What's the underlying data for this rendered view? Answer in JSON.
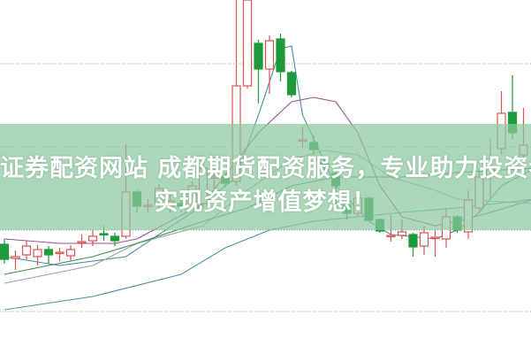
{
  "overlay": {
    "line1": "证券配资网站 成都期货配资服务，专业助力投资者",
    "line2": "实现资产增值梦想！"
  },
  "chart_data": {
    "type": "candlestick",
    "grid": true,
    "ylim": [
      0,
      400
    ],
    "colors": {
      "up": "#d9534f",
      "down": "#1e9a3a",
      "banner": "#8cc8a0"
    },
    "candles": [
      {
        "o": 124,
        "c": 107,
        "h": 130,
        "l": 102
      },
      {
        "o": 108,
        "c": 110,
        "h": 117,
        "l": 95
      },
      {
        "o": 112,
        "c": 122,
        "h": 128,
        "l": 107
      },
      {
        "o": 110,
        "c": 118,
        "h": 123,
        "l": 100
      },
      {
        "o": 118,
        "c": 112,
        "h": 122,
        "l": 102
      },
      {
        "o": 114,
        "c": 115,
        "h": 120,
        "l": 105
      },
      {
        "o": 111,
        "c": 118,
        "h": 123,
        "l": 105
      },
      {
        "o": 126,
        "c": 127,
        "h": 135,
        "l": 120
      },
      {
        "o": 128,
        "c": 133,
        "h": 140,
        "l": 122
      },
      {
        "o": 136,
        "c": 135,
        "h": 145,
        "l": 128
      },
      {
        "o": 133,
        "c": 128,
        "h": 137,
        "l": 122
      },
      {
        "o": 133,
        "c": 183,
        "h": 237,
        "l": 130
      },
      {
        "o": 183,
        "c": 167,
        "h": 185,
        "l": 160
      },
      {
        "o": 167,
        "c": 168,
        "h": 175,
        "l": 160
      },
      {
        "o": 170,
        "c": 187,
        "h": 192,
        "l": 165
      },
      {
        "o": 167,
        "c": 173,
        "h": 180,
        "l": 160
      },
      {
        "o": 170,
        "c": 167,
        "h": 178,
        "l": 160
      },
      {
        "o": 170,
        "c": 190,
        "h": 195,
        "l": 165
      },
      {
        "o": 170,
        "c": 210,
        "h": 220,
        "l": 165
      },
      {
        "o": 199,
        "c": 200,
        "h": 210,
        "l": 187
      },
      {
        "o": 200,
        "c": 193,
        "h": 205,
        "l": 188
      },
      {
        "o": 195,
        "c": 303,
        "h": 400,
        "l": 190
      },
      {
        "o": 303,
        "c": 400,
        "h": 400,
        "l": 300
      },
      {
        "o": 351,
        "c": 322,
        "h": 355,
        "l": 283
      },
      {
        "o": 322,
        "c": 354,
        "h": 360,
        "l": 294
      },
      {
        "o": 356,
        "c": 319,
        "h": 362,
        "l": 308
      },
      {
        "o": 318,
        "c": 293,
        "h": 320,
        "l": 290
      },
      {
        "o": 241,
        "c": 242,
        "h": 257,
        "l": 233
      },
      {
        "o": 239,
        "c": 231,
        "h": 247,
        "l": 225
      },
      {
        "o": 215,
        "c": 211,
        "h": 220,
        "l": 205
      },
      {
        "o": 204,
        "c": 190,
        "h": 206,
        "l": 170
      },
      {
        "o": 168,
        "c": 159,
        "h": 170,
        "l": 152
      },
      {
        "o": 159,
        "c": 176,
        "h": 178,
        "l": 155
      },
      {
        "o": 176,
        "c": 151,
        "h": 178,
        "l": 150
      },
      {
        "o": 152,
        "c": 139,
        "h": 153,
        "l": 137
      },
      {
        "o": 133,
        "c": 134,
        "h": 157,
        "l": 127
      },
      {
        "o": 134,
        "c": 138,
        "h": 152,
        "l": 130
      },
      {
        "o": 135,
        "c": 121,
        "h": 137,
        "l": 110
      },
      {
        "o": 122,
        "c": 137,
        "h": 145,
        "l": 112
      },
      {
        "o": 131,
        "c": 132,
        "h": 140,
        "l": 110
      },
      {
        "o": 130,
        "c": 155,
        "h": 165,
        "l": 120
      },
      {
        "o": 155,
        "c": 140,
        "h": 157,
        "l": 137
      },
      {
        "o": 138,
        "c": 174,
        "h": 185,
        "l": 130
      },
      {
        "o": 165,
        "c": 200,
        "h": 210,
        "l": 160
      },
      {
        "o": 201,
        "c": 210,
        "h": 243,
        "l": 175
      },
      {
        "o": 232,
        "c": 272,
        "h": 297,
        "l": 225
      },
      {
        "o": 273,
        "c": 250,
        "h": 315,
        "l": 243
      },
      {
        "o": 225,
        "c": 236,
        "h": 278,
        "l": 205
      }
    ],
    "moving_averages": [
      {
        "color": "#3f8fa0",
        "points": [
          [
            0,
            110
          ],
          [
            5,
            100
          ],
          [
            11,
            110
          ],
          [
            17,
            160
          ],
          [
            21,
            200
          ],
          [
            23,
            270
          ],
          [
            25,
            345
          ],
          [
            26,
            348
          ],
          [
            27,
            270
          ],
          [
            30,
            190
          ],
          [
            33,
            150
          ],
          [
            35,
            135
          ],
          [
            39,
            130
          ],
          [
            41,
            140
          ],
          [
            43,
            160
          ],
          [
            45,
            190
          ],
          [
            48,
            210
          ]
        ]
      },
      {
        "color": "#9a4f8f",
        "points": [
          [
            0,
            130
          ],
          [
            5,
            125
          ],
          [
            10,
            125
          ],
          [
            12,
            130
          ],
          [
            18,
            170
          ],
          [
            23,
            250
          ],
          [
            26,
            285
          ],
          [
            28,
            290
          ],
          [
            30,
            285
          ],
          [
            32,
            250
          ],
          [
            34,
            190
          ],
          [
            36,
            155
          ],
          [
            39,
            145
          ],
          [
            41,
            150
          ],
          [
            44,
            160
          ],
          [
            48,
            175
          ]
        ]
      },
      {
        "color": "#a0a0a0",
        "points": [
          [
            0,
            80
          ],
          [
            8,
            100
          ],
          [
            12,
            125
          ],
          [
            18,
            145
          ],
          [
            22,
            185
          ],
          [
            26,
            220
          ],
          [
            29,
            230
          ],
          [
            32,
            225
          ],
          [
            35,
            200
          ],
          [
            39,
            185
          ],
          [
            41,
            175
          ],
          [
            48,
            170
          ]
        ]
      },
      {
        "color": "#3a8a55",
        "points": [
          [
            0,
            90
          ],
          [
            8,
            110
          ],
          [
            12,
            125
          ],
          [
            18,
            150
          ],
          [
            22,
            165
          ],
          [
            26,
            190
          ],
          [
            30,
            200
          ],
          [
            36,
            200
          ],
          [
            41,
            205
          ],
          [
            48,
            210
          ]
        ]
      },
      {
        "color": "#4a93a8",
        "points": [
          [
            0,
            50
          ],
          [
            8,
            65
          ],
          [
            16,
            90
          ],
          [
            20,
            120
          ],
          [
            24,
            140
          ],
          [
            28,
            150
          ],
          [
            32,
            155
          ],
          [
            36,
            160
          ],
          [
            41,
            165
          ],
          [
            48,
            175
          ]
        ]
      }
    ]
  }
}
